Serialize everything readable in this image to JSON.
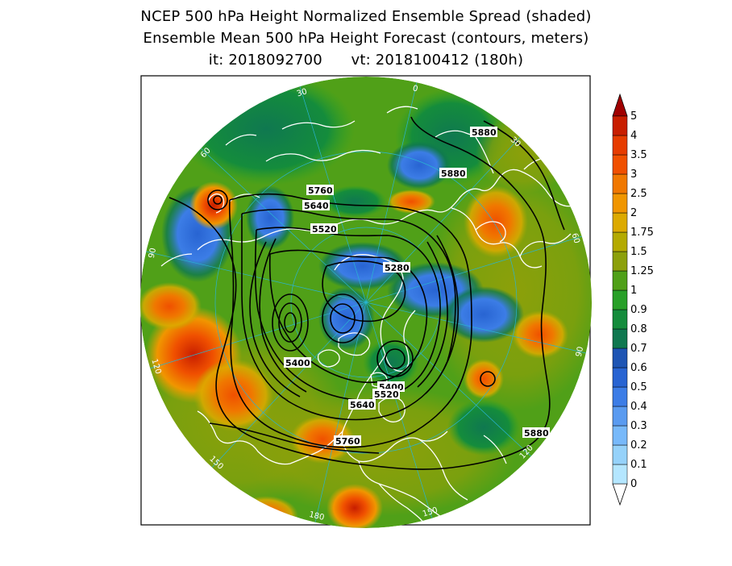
{
  "title": {
    "line1": "NCEP 500 hPa Height Normalized Ensemble Spread (shaded)",
    "line2": "Ensemble Mean 500 hPa Height Forecast (contours, meters)",
    "line3": "it: 2018092700      vt: 2018100412 (180h)"
  },
  "longitude_labels": [
    {
      "text": "60",
      "lon": 60
    },
    {
      "text": "30",
      "lon": 30
    },
    {
      "text": "0",
      "lon": 0
    },
    {
      "text": "30",
      "lon": -30
    },
    {
      "text": "60",
      "lon": -60
    },
    {
      "text": "90",
      "lon": -90
    },
    {
      "text": "120",
      "lon": -120
    },
    {
      "text": "150",
      "lon": -150
    },
    {
      "text": "180",
      "lon": 180
    },
    {
      "text": "150",
      "lon": 150
    },
    {
      "text": "120",
      "lon": 120
    },
    {
      "text": "90",
      "lon": 90
    }
  ],
  "contour_labels": [
    "5880",
    "5880",
    "5760",
    "5640",
    "5520",
    "5280",
    "5400",
    "5400",
    "5520",
    "5640",
    "5760",
    "5880"
  ],
  "colorbar": {
    "levels": [
      "0",
      "0.1",
      "0.2",
      "0.3",
      "0.4",
      "0.5",
      "0.6",
      "0.7",
      "0.8",
      "0.9",
      "1",
      "1.25",
      "1.5",
      "1.75",
      "2",
      "2.5",
      "3",
      "3.5",
      "4",
      "5"
    ],
    "colors": [
      "#b4e6ff",
      "#96d2fa",
      "#78b9fa",
      "#5a9bf0",
      "#3c7de6",
      "#2864d2",
      "#1e55b4",
      "#0f7850",
      "#148c3c",
      "#28a028",
      "#50a018",
      "#8ca00a",
      "#b4aa00",
      "#dcaa00",
      "#f09600",
      "#f07800",
      "#f05000",
      "#e63c00",
      "#c81e00",
      "#a00000"
    ]
  },
  "colors": {
    "coastline": "#ffffff",
    "gridline": "#2ab4d2",
    "contour": "#000000",
    "frame": "#000000"
  }
}
